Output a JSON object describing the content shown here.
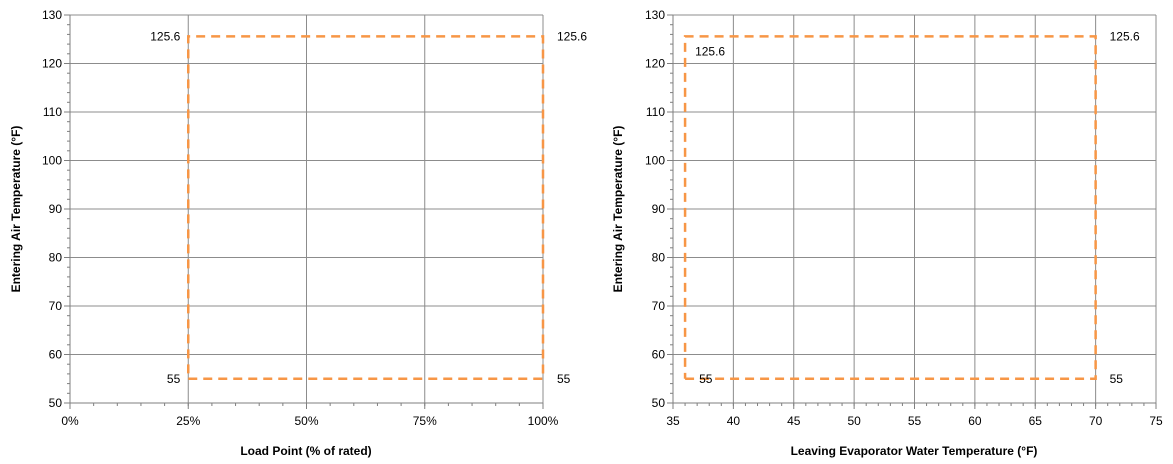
{
  "chart_data": [
    {
      "type": "line",
      "xlabel": "Load Point (% of rated)",
      "ylabel": "Entering Air Temperature (°F)",
      "xlim": [
        0,
        100
      ],
      "ylim": [
        50,
        130
      ],
      "xticks": [
        0,
        25,
        50,
        75,
        100
      ],
      "xtick_labels": [
        "0%",
        "25%",
        "50%",
        "75%",
        "100%"
      ],
      "xminor_step": 5,
      "yticks": [
        50,
        60,
        70,
        80,
        90,
        100,
        110,
        120,
        130
      ],
      "yminor_step": 2,
      "grid": true,
      "series": [
        {
          "color": "#F79646",
          "style": "dashed",
          "x": [
            25,
            100,
            100,
            25,
            25
          ],
          "y": [
            55,
            55,
            125.6,
            125.6,
            55
          ]
        }
      ],
      "annotations": [
        {
          "text": "125.6",
          "x": 25,
          "y": 125.6,
          "anchor": "left"
        },
        {
          "text": "125.6",
          "x": 100,
          "y": 125.6,
          "anchor": "right"
        },
        {
          "text": "55",
          "x": 25,
          "y": 55,
          "anchor": "left"
        },
        {
          "text": "55",
          "x": 100,
          "y": 55,
          "anchor": "right"
        }
      ]
    },
    {
      "type": "line",
      "xlabel": "Leaving Evaporator Water Temperature (°F)",
      "ylabel": "Entering Air Temperature (°F)",
      "xlim": [
        35,
        75
      ],
      "ylim": [
        50,
        130
      ],
      "xticks": [
        35,
        40,
        45,
        50,
        55,
        60,
        65,
        70,
        75
      ],
      "xtick_labels": [
        "35",
        "40",
        "45",
        "50",
        "55",
        "60",
        "65",
        "70",
        "75"
      ],
      "xminor_step": 1,
      "yticks": [
        50,
        60,
        70,
        80,
        90,
        100,
        110,
        120,
        130
      ],
      "yminor_step": 2,
      "grid": true,
      "series": [
        {
          "color": "#F79646",
          "style": "dashed",
          "x": [
            36,
            70,
            70,
            36,
            36
          ],
          "y": [
            55,
            55,
            125.6,
            125.6,
            55
          ]
        }
      ],
      "annotations": [
        {
          "text": "125.6",
          "x": 36,
          "y": 125.6,
          "anchor": "below-right"
        },
        {
          "text": "125.6",
          "x": 70,
          "y": 125.6,
          "anchor": "right"
        },
        {
          "text": "55",
          "x": 36,
          "y": 55,
          "anchor": "right-inside"
        },
        {
          "text": "55",
          "x": 70,
          "y": 55,
          "anchor": "right"
        }
      ]
    }
  ]
}
